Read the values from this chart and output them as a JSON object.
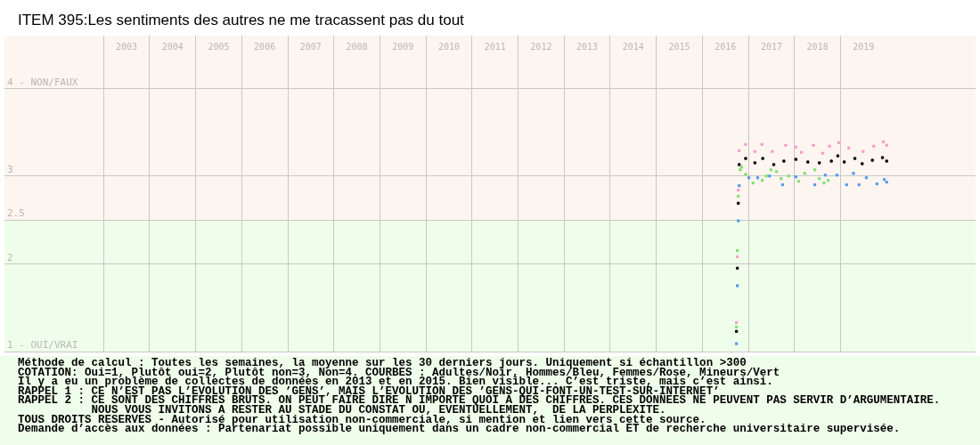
{
  "chart_data": {
    "type": "scatter",
    "title": "ITEM 395:Les sentiments des autres ne me tracassent pas du tout",
    "xlim": [
      2000.85,
      2021.93
    ],
    "xticks": [
      {
        "value": 2003,
        "label": null
      },
      {
        "value": 2003.5,
        "label": "2003"
      },
      {
        "value": 2004,
        "label": null
      },
      {
        "value": 2004.5,
        "label": "2004"
      },
      {
        "value": 2005,
        "label": null
      },
      {
        "value": 2005.5,
        "label": "2005"
      },
      {
        "value": 2006,
        "label": null
      },
      {
        "value": 2006.5,
        "label": "2006"
      },
      {
        "value": 2007,
        "label": null
      },
      {
        "value": 2007.5,
        "label": "2007"
      },
      {
        "value": 2008,
        "label": null
      },
      {
        "value": 2008.5,
        "label": "2008"
      },
      {
        "value": 2009,
        "label": null
      },
      {
        "value": 2009.5,
        "label": "2009"
      },
      {
        "value": 2010,
        "label": null
      },
      {
        "value": 2010.5,
        "label": "2010"
      },
      {
        "value": 2011,
        "label": null
      },
      {
        "value": 2011.5,
        "label": "2011"
      },
      {
        "value": 2012,
        "label": null
      },
      {
        "value": 2012.5,
        "label": "2012"
      },
      {
        "value": 2013,
        "label": null
      },
      {
        "value": 2013.5,
        "label": "2013"
      },
      {
        "value": 2014,
        "label": null
      },
      {
        "value": 2014.5,
        "label": "2014"
      },
      {
        "value": 2015,
        "label": null
      },
      {
        "value": 2015.5,
        "label": "2015"
      },
      {
        "value": 2016,
        "label": null
      },
      {
        "value": 2016.5,
        "label": "2016"
      },
      {
        "value": 2017,
        "label": null
      },
      {
        "value": 2017.5,
        "label": "2017"
      },
      {
        "value": 2018,
        "label": null
      },
      {
        "value": 2018.5,
        "label": "2018"
      },
      {
        "value": 2019,
        "label": null
      },
      {
        "value": 2019.5,
        "label": "2019"
      }
    ],
    "ylim": [
      1,
      4.6
    ],
    "yticks": [
      {
        "value": 1,
        "label": "1 - OUI/VRAI"
      },
      2,
      2.5,
      3,
      {
        "value": 4,
        "label": "4 - NON/FAUX"
      }
    ],
    "grid": true,
    "marker": "square",
    "legend": false,
    "bands": [
      {
        "axis": "y",
        "from": 2.5,
        "to": 4.6,
        "color": "#fdf5ef"
      },
      {
        "axis": "y",
        "from": 1,
        "to": 2.5,
        "color": "#effeea"
      }
    ],
    "series": [
      {
        "color": "#ff99cc",
        "x": [
          2016.74,
          2016.76,
          2016.78,
          2016.8,
          2016.94,
          2017.14,
          2017.29,
          2017.52,
          2017.81,
          2018.03,
          2018.15,
          2018.41,
          2018.61,
          2018.76,
          2018.96,
          2019.18,
          2019.49,
          2019.72,
          2019.93,
          2020.0
        ],
        "values": [
          1.33,
          2.08,
          2.84,
          3.29,
          3.36,
          3.28,
          3.36,
          3.28,
          3.35,
          3.33,
          3.27,
          3.35,
          3.26,
          3.34,
          3.38,
          3.32,
          3.28,
          3.34,
          3.39,
          3.35
        ]
      },
      {
        "color": "#000000",
        "x": [
          2016.74,
          2016.76,
          2016.78,
          2016.8,
          2016.94,
          2017.14,
          2017.31,
          2017.55,
          2017.77,
          2018.03,
          2018.29,
          2018.54,
          2018.8,
          2018.94,
          2019.08,
          2019.31,
          2019.47,
          2019.69,
          2019.91,
          2020.0
        ],
        "values": [
          1.23,
          1.95,
          2.69,
          3.13,
          3.2,
          3.15,
          3.2,
          3.13,
          3.17,
          3.19,
          3.16,
          3.15,
          3.17,
          3.23,
          3.16,
          3.2,
          3.14,
          3.18,
          3.21,
          3.17
        ]
      },
      {
        "color": "#80e070",
        "x": [
          2016.74,
          2016.76,
          2016.78,
          2016.82,
          2016.85,
          2016.94,
          2017.1,
          2017.3,
          2017.39,
          2017.49,
          2017.61,
          2017.71,
          2017.87,
          2018.09,
          2018.22,
          2018.44,
          2018.54,
          2018.64,
          2018.73
        ],
        "values": [
          1.28,
          2.15,
          2.77,
          3.07,
          3.1,
          3.02,
          2.92,
          2.95,
          3.0,
          3.07,
          3.05,
          2.97,
          3.0,
          2.94,
          3.03,
          3.07,
          2.97,
          2.92,
          2.95
        ]
      },
      {
        "color": "#5599ee",
        "x": [
          2016.74,
          2016.76,
          2016.78,
          2016.8,
          2017.01,
          2017.2,
          2017.46,
          2017.74,
          2018.03,
          2018.44,
          2018.67,
          2018.92,
          2019.13,
          2019.28,
          2019.4,
          2019.56,
          2019.79,
          2019.95,
          2020.0
        ],
        "values": [
          1.09,
          1.75,
          2.49,
          2.89,
          2.98,
          2.98,
          3.0,
          2.9,
          2.99,
          2.9,
          3.01,
          3.01,
          2.9,
          3.03,
          2.9,
          2.98,
          2.91,
          2.96,
          2.93
        ]
      }
    ],
    "annotations": [
      "Méthode de calcul : Toutes les semaines, la moyenne sur les 30 derniers jours. Uniquement si échantillon >300",
      "COTATION: Oui=1, Plutôt oui=2, Plutôt non=3, Non=4. COURBES : Adultes/Noir, Hommes/Bleu, Femmes/Rose, Mineurs/Vert",
      "Il y a eu un problème de collectes de données en 2013 et en 2015. Bien visible... C’est triste, mais c’est ainsi.",
      "RAPPEL 1 : CE N’EST PAS L’EVOLUTION DES ’GENS’, MAIS L’EVOLUTION DES ’GENS-QUI-FONT-UN-TEST-SUR-INTERNET’",
      "RAPPEL 2 : CE SONT DES CHIFFRES BRUTS. ON PEUT FAIRE DIRE N IMPORTE QUOI A DES CHIFFRES. CES DONNEES NE PEUVENT PAS SERVIR D’ARGUMENTAIRE.",
      "           NOUS VOUS INVITONS A RESTER AU STADE DU CONSTAT OU, EVENTUELLEMENT,  DE LA PERPLEXITE.",
      "TOUS DROITS RESERVES - Autorisé pour utilisation non-commerciale, si mention et lien vers cette source.",
      "Demande d’accès aux données : Partenariat possible uniquement dans un cadre non-commercial ET de recherche universitaire supervisée."
    ]
  }
}
